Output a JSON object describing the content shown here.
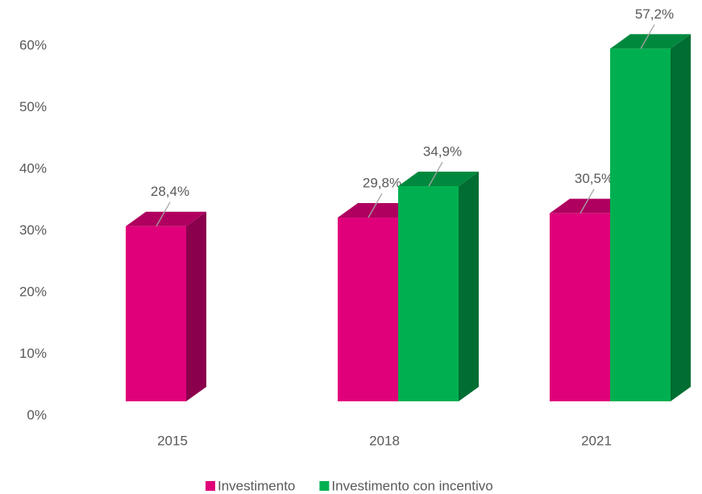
{
  "chart_data": {
    "type": "bar3d",
    "categories": [
      "2015",
      "2018",
      "2021"
    ],
    "series": [
      {
        "name": "Investimento",
        "color": "#e0007a",
        "values": [
          28.4,
          29.8,
          30.5
        ],
        "value_labels": [
          "28,4%",
          "29,8%",
          "30,5%"
        ]
      },
      {
        "name": "Investimento con incentivo",
        "color": "#00b050",
        "values": [
          null,
          34.9,
          57.2
        ],
        "value_labels": [
          null,
          "34,9%",
          "57,2%"
        ]
      }
    ],
    "ylim": [
      0,
      60
    ],
    "yticks": [
      {
        "value": 0,
        "label": "0%"
      },
      {
        "value": 10,
        "label": "10%"
      },
      {
        "value": 20,
        "label": "20%"
      },
      {
        "value": 30,
        "label": "30%"
      },
      {
        "value": 40,
        "label": "40%"
      },
      {
        "value": 50,
        "label": "50%"
      },
      {
        "value": 60,
        "label": "60%"
      }
    ],
    "legend": "bottom"
  }
}
